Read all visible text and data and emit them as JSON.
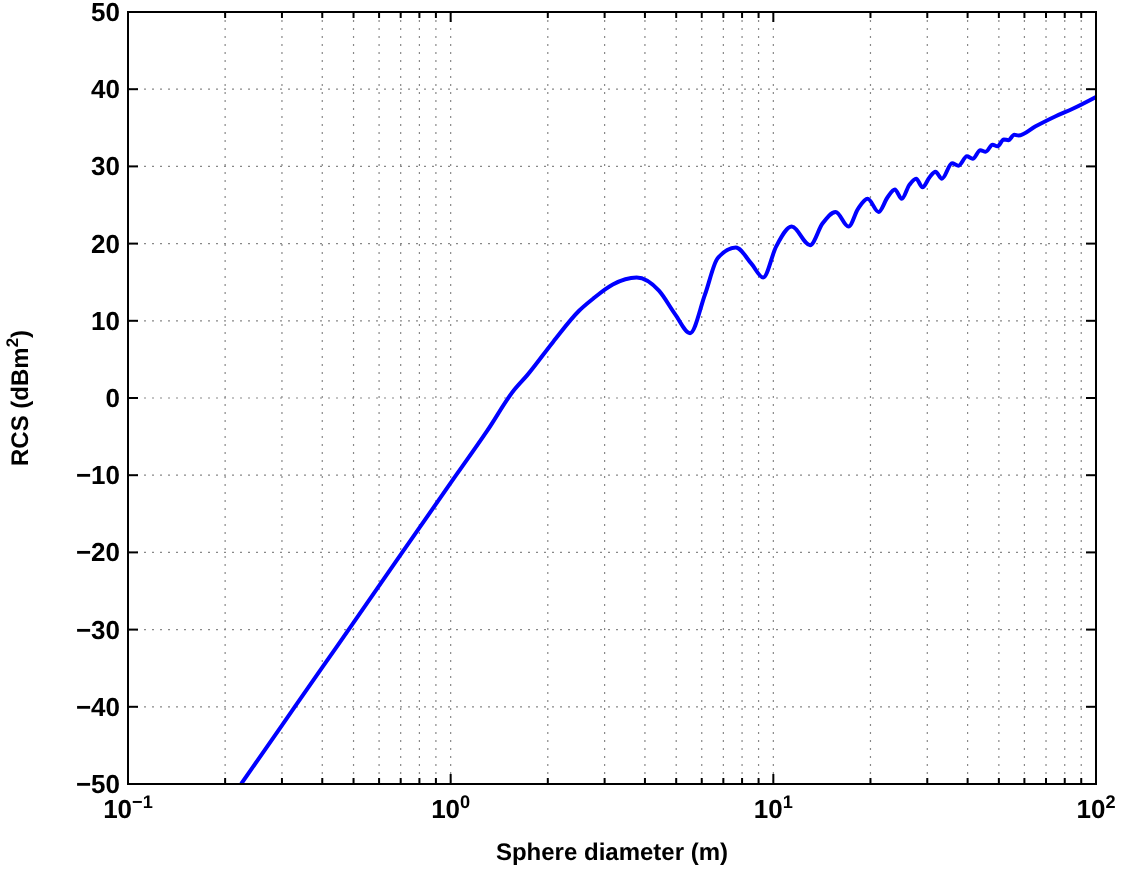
{
  "chart_data": {
    "type": "line",
    "xlabel": "Sphere diameter (m)",
    "ylabel": "RCS (dBm$^{2}$)",
    "log": "x",
    "grid": true,
    "line_style": "solid",
    "marker": "none",
    "xlim": [
      0.1,
      100
    ],
    "xticks": [
      {
        "value": 0.1,
        "label": "10$^{−1}$"
      },
      {
        "value": 0.2,
        "label": null
      },
      {
        "value": 0.3,
        "label": null
      },
      {
        "value": 0.4,
        "label": null
      },
      {
        "value": 0.5,
        "label": null
      },
      {
        "value": 0.6,
        "label": null
      },
      {
        "value": 0.7,
        "label": null
      },
      {
        "value": 0.8,
        "label": null
      },
      {
        "value": 0.9,
        "label": null
      },
      {
        "value": 1,
        "label": "10$^{0}$"
      },
      {
        "value": 2,
        "label": null
      },
      {
        "value": 3,
        "label": null
      },
      {
        "value": 4,
        "label": null
      },
      {
        "value": 5,
        "label": null
      },
      {
        "value": 6,
        "label": null
      },
      {
        "value": 7,
        "label": null
      },
      {
        "value": 8,
        "label": null
      },
      {
        "value": 9,
        "label": null
      },
      {
        "value": 10,
        "label": "10$^{1}$"
      },
      {
        "value": 20,
        "label": null
      },
      {
        "value": 30,
        "label": null
      },
      {
        "value": 40,
        "label": null
      },
      {
        "value": 50,
        "label": null
      },
      {
        "value": 60,
        "label": null
      },
      {
        "value": 70,
        "label": null
      },
      {
        "value": 80,
        "label": null
      },
      {
        "value": 90,
        "label": null
      },
      {
        "value": 100,
        "label": "10$^{2}$"
      }
    ],
    "ylim": [
      -50,
      50
    ],
    "yticks": [
      {
        "value": -50,
        "label": "−50"
      },
      {
        "value": -40,
        "label": "−40"
      },
      {
        "value": -30,
        "label": "−30"
      },
      {
        "value": -20,
        "label": "−20"
      },
      {
        "value": -10,
        "label": "−10"
      },
      0,
      10,
      20,
      30,
      40,
      50
    ],
    "series": [
      {
        "color": "#0000ff",
        "x": [
          0.225,
          0.3,
          0.4,
          0.5,
          0.7,
          1.0,
          1.3,
          1.57,
          1.73,
          2.08,
          2.5,
          2.77,
          3.18,
          3.77,
          4.42,
          4.97,
          5.52,
          6.14,
          6.72,
          7.65,
          8.55,
          9.3,
          10.2,
          11.4,
          13.0,
          14.2,
          15.6,
          17.1,
          18.3,
          19.6,
          21.2,
          22.6,
          23.8,
          25.0,
          26.4,
          27.7,
          29.0,
          30.5,
          31.8,
          33.3,
          35.8,
          37.5,
          39.8,
          41.5,
          43.8,
          45.5,
          47.8,
          49.5,
          51.8,
          53.5,
          55.8,
          57.5,
          65,
          75,
          85,
          100
        ],
        "values": [
          -49.9,
          -42.4,
          -34.9,
          -29.1,
          -20.3,
          -11.0,
          -4.2,
          1.0,
          3.0,
          7.3,
          11.3,
          12.9,
          14.7,
          15.6,
          13.9,
          10.8,
          8.4,
          13.4,
          18.1,
          19.5,
          17.4,
          15.6,
          19.6,
          22.2,
          19.8,
          22.6,
          24.1,
          22.2,
          24.5,
          25.8,
          24.1,
          26.0,
          27.0,
          25.8,
          27.6,
          28.4,
          27.3,
          28.6,
          29.3,
          28.4,
          30.4,
          30.1,
          31.3,
          31.0,
          32.1,
          31.9,
          32.8,
          32.6,
          33.5,
          33.4,
          34.1,
          34.0,
          35.2,
          36.5,
          37.5,
          39.0
        ]
      }
    ]
  }
}
